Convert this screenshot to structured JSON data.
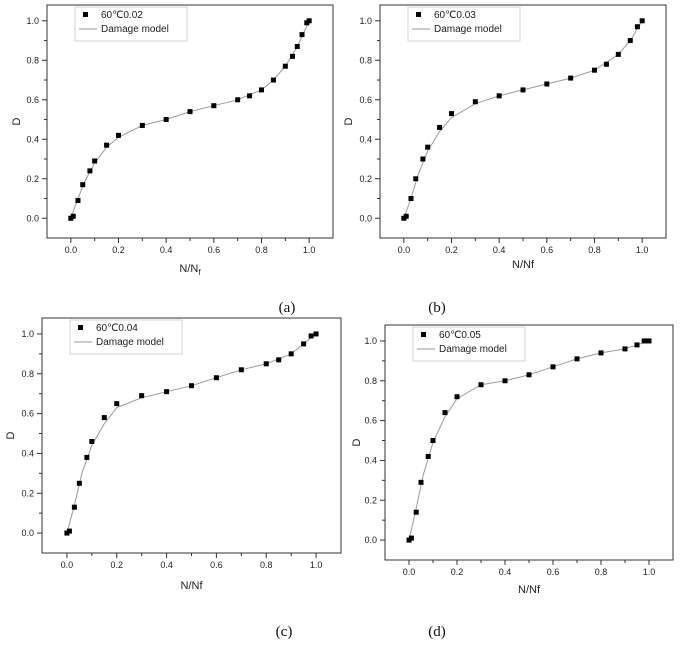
{
  "chart_data": [
    {
      "type": "scatter",
      "panel_label": "(a)",
      "xlabel": "N/N",
      "xlabel_sub": "f",
      "ylabel": "D",
      "xlim": [
        -0.1,
        1.1
      ],
      "ylim": [
        -0.1,
        1.08
      ],
      "xticks": [
        "0.0",
        "0.2",
        "0.4",
        "0.6",
        "0.8",
        "1.0"
      ],
      "yticks": [
        "0.0",
        "0.2",
        "0.4",
        "0.6",
        "0.8",
        "1.0"
      ],
      "grid": false,
      "legend_position": "top-left",
      "series": [
        {
          "name": "60℃0.02",
          "style": "square-markers",
          "color": "#000000",
          "x": [
            0.0,
            0.01,
            0.03,
            0.05,
            0.08,
            0.1,
            0.15,
            0.2,
            0.3,
            0.4,
            0.5,
            0.6,
            0.7,
            0.75,
            0.8,
            0.85,
            0.9,
            0.93,
            0.95,
            0.97,
            0.99,
            1.0
          ],
          "y": [
            0.0,
            0.01,
            0.09,
            0.17,
            0.24,
            0.29,
            0.37,
            0.42,
            0.47,
            0.5,
            0.54,
            0.57,
            0.6,
            0.62,
            0.65,
            0.7,
            0.77,
            0.82,
            0.87,
            0.93,
            0.99,
            1.0
          ]
        },
        {
          "name": "Damage model",
          "style": "thin-line",
          "color": "#9a9a9a",
          "x": [
            0.0,
            0.03,
            0.06,
            0.1,
            0.15,
            0.2,
            0.3,
            0.4,
            0.5,
            0.6,
            0.7,
            0.8,
            0.85,
            0.9,
            0.95,
            1.0
          ],
          "y": [
            0.0,
            0.1,
            0.19,
            0.28,
            0.36,
            0.41,
            0.47,
            0.5,
            0.54,
            0.57,
            0.6,
            0.65,
            0.7,
            0.77,
            0.87,
            1.0
          ]
        }
      ]
    },
    {
      "type": "scatter",
      "panel_label": "(b)",
      "xlabel": "N/Nf",
      "ylabel": "D",
      "xlim": [
        -0.1,
        1.1
      ],
      "ylim": [
        -0.1,
        1.08
      ],
      "xticks": [
        "0.0",
        "0.2",
        "0.4",
        "0.6",
        "0.8",
        "1.0"
      ],
      "yticks": [
        "0.0",
        "0.2",
        "0.4",
        "0.6",
        "0.8",
        "1.0"
      ],
      "grid": false,
      "legend_position": "top-left",
      "series": [
        {
          "name": "60℃0.03",
          "style": "square-markers",
          "color": "#000000",
          "x": [
            0.0,
            0.01,
            0.03,
            0.05,
            0.08,
            0.1,
            0.15,
            0.2,
            0.3,
            0.4,
            0.5,
            0.6,
            0.7,
            0.8,
            0.85,
            0.9,
            0.95,
            0.98,
            1.0
          ],
          "y": [
            0.0,
            0.01,
            0.1,
            0.2,
            0.3,
            0.36,
            0.46,
            0.53,
            0.59,
            0.62,
            0.65,
            0.68,
            0.71,
            0.75,
            0.78,
            0.83,
            0.9,
            0.97,
            1.0
          ]
        },
        {
          "name": "Damage model",
          "style": "thin-line",
          "color": "#9a9a9a",
          "x": [
            0.0,
            0.03,
            0.06,
            0.1,
            0.15,
            0.2,
            0.3,
            0.4,
            0.5,
            0.6,
            0.7,
            0.8,
            0.9,
            0.95,
            1.0
          ],
          "y": [
            0.0,
            0.1,
            0.22,
            0.34,
            0.44,
            0.51,
            0.58,
            0.62,
            0.65,
            0.68,
            0.71,
            0.75,
            0.83,
            0.9,
            1.0
          ]
        }
      ]
    },
    {
      "type": "scatter",
      "panel_label": "(c)",
      "xlabel": "N/Nf",
      "ylabel": "D",
      "xlim": [
        -0.1,
        1.1
      ],
      "ylim": [
        -0.1,
        1.08
      ],
      "xticks": [
        "0.0",
        "0.2",
        "0.4",
        "0.6",
        "0.8",
        "1.0"
      ],
      "yticks": [
        "0.0",
        "0.2",
        "0.4",
        "0.6",
        "0.8",
        "1.0"
      ],
      "grid": false,
      "legend_position": "top-left",
      "series": [
        {
          "name": "60℃0.04",
          "style": "square-markers",
          "color": "#000000",
          "x": [
            0.0,
            0.01,
            0.03,
            0.05,
            0.08,
            0.1,
            0.15,
            0.2,
            0.3,
            0.4,
            0.5,
            0.6,
            0.7,
            0.8,
            0.85,
            0.9,
            0.95,
            0.98,
            1.0
          ],
          "y": [
            0.0,
            0.01,
            0.13,
            0.25,
            0.38,
            0.46,
            0.58,
            0.65,
            0.69,
            0.71,
            0.74,
            0.78,
            0.82,
            0.85,
            0.87,
            0.9,
            0.95,
            0.99,
            1.0
          ]
        },
        {
          "name": "Damage model",
          "style": "thin-line",
          "color": "#9a9a9a",
          "x": [
            0.0,
            0.03,
            0.06,
            0.1,
            0.15,
            0.2,
            0.3,
            0.4,
            0.5,
            0.6,
            0.7,
            0.8,
            0.9,
            0.95,
            1.0
          ],
          "y": [
            0.0,
            0.14,
            0.3,
            0.44,
            0.55,
            0.63,
            0.68,
            0.71,
            0.74,
            0.78,
            0.82,
            0.85,
            0.9,
            0.95,
            1.0
          ]
        }
      ]
    },
    {
      "type": "scatter",
      "panel_label": "(d)",
      "xlabel": "N/Nf",
      "ylabel": "D",
      "xlim": [
        -0.1,
        1.1
      ],
      "ylim": [
        -0.1,
        1.08
      ],
      "xticks": [
        "0.0",
        "0.2",
        "0.4",
        "0.6",
        "0.8",
        "1.0"
      ],
      "yticks": [
        "0.0",
        "0.2",
        "0.4",
        "0.6",
        "0.8",
        "1.0"
      ],
      "grid": false,
      "legend_position": "top-left",
      "series": [
        {
          "name": "60℃0.05",
          "style": "square-markers",
          "color": "#000000",
          "x": [
            0.0,
            0.01,
            0.03,
            0.05,
            0.08,
            0.1,
            0.15,
            0.2,
            0.3,
            0.4,
            0.5,
            0.6,
            0.7,
            0.8,
            0.9,
            0.95,
            0.98,
            1.0
          ],
          "y": [
            0.0,
            0.01,
            0.14,
            0.29,
            0.42,
            0.5,
            0.64,
            0.72,
            0.78,
            0.8,
            0.83,
            0.87,
            0.91,
            0.94,
            0.96,
            0.98,
            1.0,
            1.0
          ]
        },
        {
          "name": "Damage model",
          "style": "thin-line",
          "color": "#9a9a9a",
          "x": [
            0.0,
            0.03,
            0.06,
            0.1,
            0.15,
            0.2,
            0.3,
            0.4,
            0.5,
            0.6,
            0.7,
            0.8,
            0.9,
            1.0
          ],
          "y": [
            0.0,
            0.16,
            0.33,
            0.49,
            0.62,
            0.71,
            0.78,
            0.8,
            0.83,
            0.87,
            0.91,
            0.94,
            0.96,
            1.0
          ]
        }
      ]
    }
  ]
}
